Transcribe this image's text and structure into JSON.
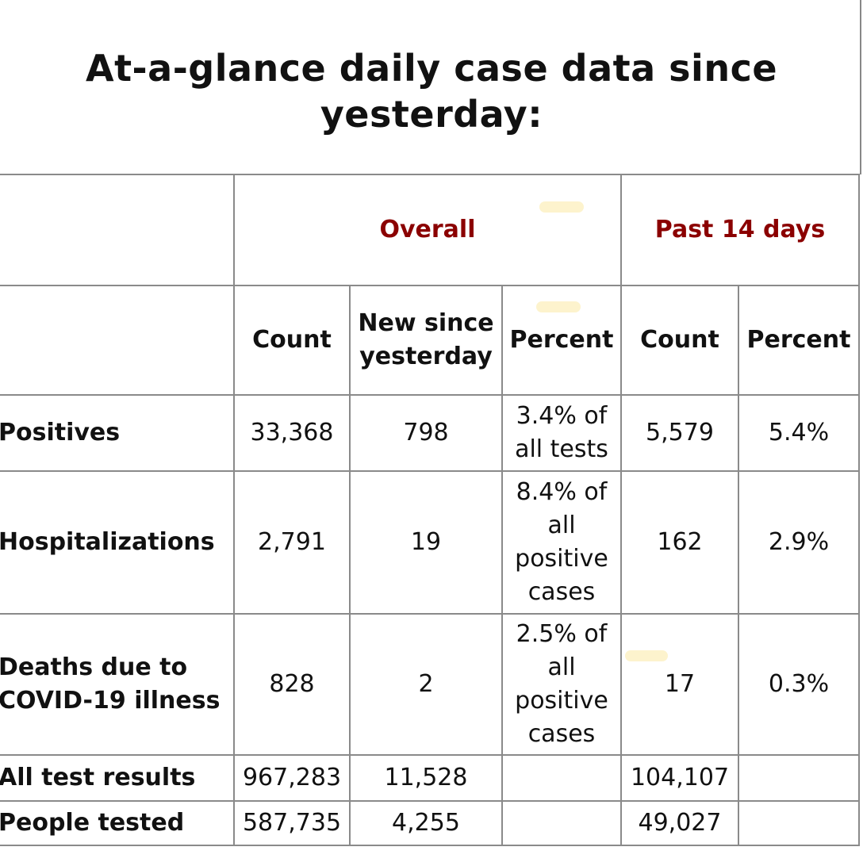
{
  "title": "At-a-glance daily case data since yesterday:",
  "header": {
    "group_overall": "Overall",
    "group_past14": "Past 14 days",
    "count": "Count",
    "new_since_yesterday": "New since yesterday",
    "percent": "Percent"
  },
  "rows": [
    {
      "label": "Positives",
      "count": "33,368",
      "new": "798",
      "percent": "3.4% of all tests",
      "count14": "5,579",
      "percent14": "5.4%"
    },
    {
      "label": "Hospitalizations",
      "count": "2,791",
      "new": "19",
      "percent": "8.4% of all positive cases",
      "count14": "162",
      "percent14": "2.9%"
    },
    {
      "label": "Deaths due to COVID-19 illness",
      "count": "828",
      "new": "2",
      "percent": "2.5% of all positive cases",
      "count14": "17",
      "percent14": "0.3%"
    },
    {
      "label": "All test results",
      "count": "967,283",
      "new": "11,528",
      "percent": "",
      "count14": "104,107",
      "percent14": ""
    },
    {
      "label": "People tested",
      "count": "587,735",
      "new": "4,255",
      "percent": "",
      "count14": "49,027",
      "percent14": ""
    }
  ],
  "colors": {
    "group_header": "#8b0000",
    "border": "#8a8a8a"
  }
}
